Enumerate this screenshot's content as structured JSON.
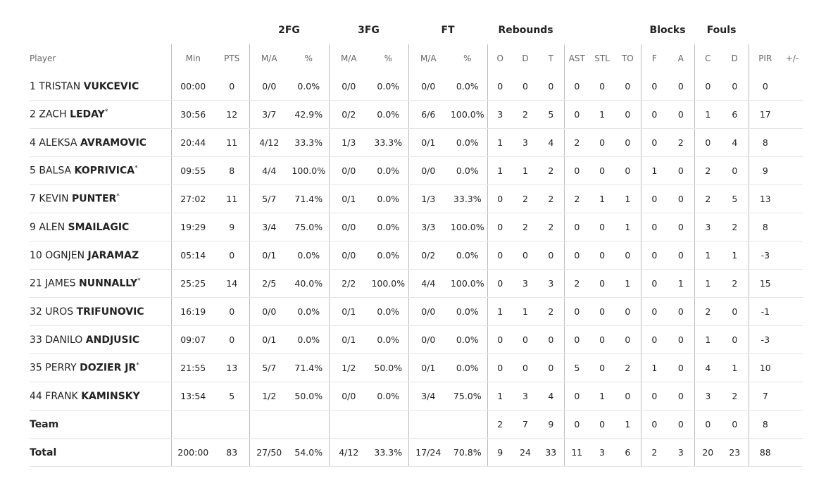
{
  "header": {
    "groups": [
      "2FG",
      "3FG",
      "FT",
      "Rebounds",
      "Blocks",
      "Fouls"
    ],
    "columns": [
      "Player",
      "Min",
      "PTS",
      "M/A",
      "%",
      "M/A",
      "%",
      "M/A",
      "%",
      "O",
      "D",
      "T",
      "AST",
      "STL",
      "TO",
      "F",
      "A",
      "C",
      "D",
      "PIR",
      "+/-"
    ]
  },
  "table": {
    "rows": [
      {
        "num": "1",
        "first": "TRISTAN",
        "last": "VUKCEVIC",
        "cells": [
          "00:00",
          "0",
          "0/0",
          "0.0%",
          "0/0",
          "0.0%",
          "0/0",
          "0.0%",
          "0",
          "0",
          "0",
          "0",
          "0",
          "0",
          "0",
          "0",
          "0",
          "0",
          "0"
        ]
      },
      {
        "num": "2",
        "first": "ZACH",
        "last": "LEDAY",
        "mark": "*",
        "cells": [
          "30:56",
          "12",
          "3/7",
          "42.9%",
          "0/2",
          "0.0%",
          "6/6",
          "100.0%",
          "3",
          "2",
          "5",
          "0",
          "1",
          "0",
          "0",
          "0",
          "1",
          "6",
          "17"
        ]
      },
      {
        "num": "4",
        "first": "ALEKSA",
        "last": "AVRAMOVIC",
        "cells": [
          "20:44",
          "11",
          "4/12",
          "33.3%",
          "1/3",
          "33.3%",
          "0/1",
          "0.0%",
          "1",
          "3",
          "4",
          "2",
          "0",
          "0",
          "0",
          "2",
          "0",
          "4",
          "8"
        ]
      },
      {
        "num": "5",
        "first": "BALSA",
        "last": "KOPRIVICA",
        "mark": "*",
        "cells": [
          "09:55",
          "8",
          "4/4",
          "100.0%",
          "0/0",
          "0.0%",
          "0/0",
          "0.0%",
          "1",
          "1",
          "2",
          "0",
          "0",
          "0",
          "1",
          "0",
          "2",
          "0",
          "9"
        ]
      },
      {
        "num": "7",
        "first": "KEVIN",
        "last": "PUNTER",
        "mark": "*",
        "cells": [
          "27:02",
          "11",
          "5/7",
          "71.4%",
          "0/1",
          "0.0%",
          "1/3",
          "33.3%",
          "0",
          "2",
          "2",
          "2",
          "1",
          "1",
          "0",
          "0",
          "2",
          "5",
          "13"
        ]
      },
      {
        "num": "9",
        "first": "ALEN",
        "last": "SMAILAGIC",
        "cells": [
          "19:29",
          "9",
          "3/4",
          "75.0%",
          "0/0",
          "0.0%",
          "3/3",
          "100.0%",
          "0",
          "2",
          "2",
          "0",
          "0",
          "1",
          "0",
          "0",
          "3",
          "2",
          "8"
        ]
      },
      {
        "num": "10",
        "first": "OGNJEN",
        "last": "JARAMAZ",
        "cells": [
          "05:14",
          "0",
          "0/1",
          "0.0%",
          "0/0",
          "0.0%",
          "0/2",
          "0.0%",
          "0",
          "0",
          "0",
          "0",
          "0",
          "0",
          "0",
          "0",
          "1",
          "1",
          "-3"
        ]
      },
      {
        "num": "21",
        "first": "JAMES",
        "last": "NUNNALLY",
        "mark": "*",
        "cells": [
          "25:25",
          "14",
          "2/5",
          "40.0%",
          "2/2",
          "100.0%",
          "4/4",
          "100.0%",
          "0",
          "3",
          "3",
          "2",
          "0",
          "1",
          "0",
          "1",
          "1",
          "2",
          "15"
        ]
      },
      {
        "num": "32",
        "first": "UROS",
        "last": "TRIFUNOVIC",
        "cells": [
          "16:19",
          "0",
          "0/0",
          "0.0%",
          "0/1",
          "0.0%",
          "0/0",
          "0.0%",
          "1",
          "1",
          "2",
          "0",
          "0",
          "0",
          "0",
          "0",
          "2",
          "0",
          "-1"
        ]
      },
      {
        "num": "33",
        "first": "DANILO",
        "last": "ANDJUSIC",
        "cells": [
          "09:07",
          "0",
          "0/1",
          "0.0%",
          "0/1",
          "0.0%",
          "0/0",
          "0.0%",
          "0",
          "0",
          "0",
          "0",
          "0",
          "0",
          "0",
          "0",
          "1",
          "0",
          "-3"
        ]
      },
      {
        "num": "35",
        "first": "PERRY",
        "last": "DOZIER JR",
        "mark": "*",
        "cells": [
          "21:55",
          "13",
          "5/7",
          "71.4%",
          "1/2",
          "50.0%",
          "0/1",
          "0.0%",
          "0",
          "0",
          "0",
          "5",
          "0",
          "2",
          "1",
          "0",
          "4",
          "1",
          "10"
        ]
      },
      {
        "num": "44",
        "first": "FRANK",
        "last": "KAMINSKY",
        "cells": [
          "13:54",
          "5",
          "1/2",
          "50.0%",
          "0/0",
          "0.0%",
          "3/4",
          "75.0%",
          "1",
          "3",
          "4",
          "0",
          "1",
          "0",
          "0",
          "0",
          "3",
          "2",
          "7"
        ]
      },
      {
        "label": "Team",
        "cells": [
          null,
          null,
          null,
          null,
          null,
          null,
          null,
          null,
          "2",
          "7",
          "9",
          "0",
          "0",
          "1",
          "0",
          "0",
          "0",
          "0",
          "8"
        ]
      },
      {
        "label": "Total",
        "cells": [
          "200:00",
          "83",
          "27/50",
          "54.0%",
          "4/12",
          "33.3%",
          "17/24",
          "70.8%",
          "9",
          "24",
          "33",
          "11",
          "3",
          "6",
          "2",
          "3",
          "20",
          "23",
          "88"
        ]
      }
    ]
  }
}
